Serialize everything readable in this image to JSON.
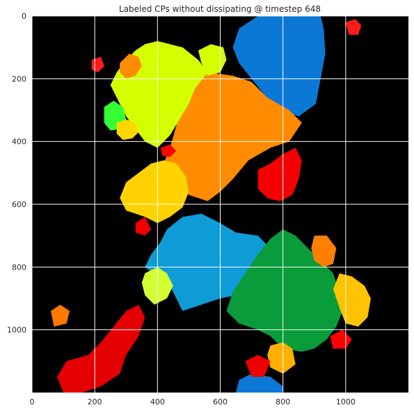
{
  "chart_data": {
    "type": "heatmap",
    "title": "Labeled CPs without dissipating @ timestep 648",
    "xlabel": "",
    "ylabel": "",
    "xlim": [
      0,
      1200
    ],
    "ylim": [
      1200,
      0
    ],
    "x_ticks": [
      0,
      200,
      400,
      600,
      800,
      1000
    ],
    "y_ticks": [
      0,
      200,
      400,
      600,
      800,
      1000
    ],
    "background_color": "#000000",
    "grid": true,
    "grid_color": "#ffffff",
    "regions": [
      {
        "name": "blue-top",
        "color": "#0b78d6",
        "points": [
          [
            660,
            40
          ],
          [
            720,
            0
          ],
          [
            920,
            0
          ],
          [
            930,
            40
          ],
          [
            935,
            120
          ],
          [
            920,
            200
          ],
          [
            905,
            280
          ],
          [
            850,
            320
          ],
          [
            790,
            300
          ],
          [
            740,
            250
          ],
          [
            700,
            200
          ],
          [
            660,
            150
          ],
          [
            640,
            100
          ]
        ]
      },
      {
        "name": "orange-center",
        "color": "#ff8c00",
        "points": [
          [
            500,
            200
          ],
          [
            560,
            180
          ],
          [
            640,
            190
          ],
          [
            700,
            210
          ],
          [
            750,
            260
          ],
          [
            820,
            300
          ],
          [
            860,
            340
          ],
          [
            820,
            400
          ],
          [
            760,
            420
          ],
          [
            690,
            460
          ],
          [
            640,
            520
          ],
          [
            600,
            560
          ],
          [
            560,
            590
          ],
          [
            500,
            570
          ],
          [
            440,
            530
          ],
          [
            420,
            470
          ],
          [
            440,
            420
          ],
          [
            460,
            350
          ],
          [
            470,
            280
          ]
        ]
      },
      {
        "name": "yellow-green-left",
        "color": "#d4ff00",
        "points": [
          [
            330,
            110
          ],
          [
            360,
            90
          ],
          [
            400,
            80
          ],
          [
            440,
            90
          ],
          [
            480,
            100
          ],
          [
            530,
            140
          ],
          [
            560,
            180
          ],
          [
            520,
            230
          ],
          [
            500,
            280
          ],
          [
            470,
            330
          ],
          [
            440,
            380
          ],
          [
            400,
            420
          ],
          [
            360,
            400
          ],
          [
            330,
            360
          ],
          [
            300,
            320
          ],
          [
            270,
            260
          ],
          [
            250,
            220
          ],
          [
            270,
            180
          ],
          [
            300,
            140
          ]
        ]
      },
      {
        "name": "yellow-green-top",
        "color": "#d4ff00",
        "points": [
          [
            530,
            110
          ],
          [
            570,
            90
          ],
          [
            610,
            100
          ],
          [
            620,
            140
          ],
          [
            600,
            180
          ],
          [
            560,
            190
          ],
          [
            540,
            150
          ]
        ]
      },
      {
        "name": "bright-green",
        "color": "#33ff33",
        "points": [
          [
            230,
            290
          ],
          [
            260,
            270
          ],
          [
            290,
            290
          ],
          [
            300,
            330
          ],
          [
            280,
            360
          ],
          [
            250,
            365
          ],
          [
            230,
            340
          ]
        ]
      },
      {
        "name": "yellow-small",
        "color": "#ffd700",
        "points": [
          [
            270,
            340
          ],
          [
            300,
            330
          ],
          [
            330,
            340
          ],
          [
            340,
            370
          ],
          [
            320,
            390
          ],
          [
            290,
            395
          ],
          [
            270,
            375
          ]
        ]
      },
      {
        "name": "orange-upper-left",
        "color": "#ff8c00",
        "points": [
          [
            280,
            150
          ],
          [
            310,
            120
          ],
          [
            340,
            130
          ],
          [
            350,
            160
          ],
          [
            330,
            190
          ],
          [
            300,
            200
          ],
          [
            280,
            180
          ]
        ]
      },
      {
        "name": "yellow-center-left",
        "color": "#ffd200",
        "points": [
          [
            340,
            500
          ],
          [
            380,
            470
          ],
          [
            420,
            460
          ],
          [
            460,
            470
          ],
          [
            490,
            510
          ],
          [
            500,
            560
          ],
          [
            480,
            610
          ],
          [
            440,
            640
          ],
          [
            400,
            660
          ],
          [
            360,
            640
          ],
          [
            300,
            620
          ],
          [
            280,
            580
          ],
          [
            300,
            530
          ]
        ]
      },
      {
        "name": "blue-center",
        "color": "#0e9bd6",
        "points": [
          [
            430,
            680
          ],
          [
            480,
            640
          ],
          [
            540,
            630
          ],
          [
            600,
            660
          ],
          [
            650,
            690
          ],
          [
            720,
            700
          ],
          [
            760,
            740
          ],
          [
            740,
            790
          ],
          [
            720,
            830
          ],
          [
            700,
            870
          ],
          [
            650,
            890
          ],
          [
            600,
            900
          ],
          [
            540,
            920
          ],
          [
            480,
            940
          ],
          [
            460,
            900
          ],
          [
            440,
            860
          ],
          [
            400,
            830
          ],
          [
            360,
            800
          ],
          [
            380,
            760
          ],
          [
            410,
            720
          ]
        ]
      },
      {
        "name": "green-bottom",
        "color": "#0a9c3a",
        "points": [
          [
            720,
            760
          ],
          [
            760,
            710
          ],
          [
            800,
            680
          ],
          [
            840,
            700
          ],
          [
            880,
            740
          ],
          [
            920,
            780
          ],
          [
            960,
            820
          ],
          [
            980,
            880
          ],
          [
            990,
            940
          ],
          [
            970,
            990
          ],
          [
            940,
            1030
          ],
          [
            900,
            1060
          ],
          [
            860,
            1070
          ],
          [
            800,
            1060
          ],
          [
            760,
            1020
          ],
          [
            720,
            1000
          ],
          [
            660,
            980
          ],
          [
            620,
            940
          ],
          [
            640,
            880
          ],
          [
            680,
            820
          ]
        ]
      },
      {
        "name": "red-right-center",
        "color": "#f50000",
        "points": [
          [
            720,
            490
          ],
          [
            760,
            470
          ],
          [
            800,
            440
          ],
          [
            840,
            420
          ],
          [
            860,
            460
          ],
          [
            850,
            520
          ],
          [
            830,
            570
          ],
          [
            790,
            590
          ],
          [
            750,
            580
          ],
          [
            720,
            550
          ]
        ]
      },
      {
        "name": "orange-right",
        "color": "#ff7f00",
        "points": [
          [
            900,
            700
          ],
          [
            940,
            700
          ],
          [
            970,
            740
          ],
          [
            960,
            790
          ],
          [
            930,
            800
          ],
          [
            900,
            780
          ],
          [
            890,
            740
          ]
        ]
      },
      {
        "name": "yellow-right",
        "color": "#ffc300",
        "points": [
          [
            980,
            820
          ],
          [
            1020,
            830
          ],
          [
            1060,
            860
          ],
          [
            1080,
            900
          ],
          [
            1070,
            960
          ],
          [
            1040,
            990
          ],
          [
            1000,
            980
          ],
          [
            980,
            930
          ],
          [
            960,
            870
          ]
        ]
      },
      {
        "name": "yellow-bottom",
        "color": "#ffb000",
        "points": [
          [
            760,
            1050
          ],
          [
            800,
            1040
          ],
          [
            830,
            1060
          ],
          [
            840,
            1110
          ],
          [
            800,
            1140
          ],
          [
            760,
            1120
          ],
          [
            750,
            1080
          ]
        ]
      },
      {
        "name": "blue-bottom",
        "color": "#0b78d6",
        "points": [
          [
            660,
            1160
          ],
          [
            700,
            1140
          ],
          [
            760,
            1150
          ],
          [
            800,
            1180
          ],
          [
            800,
            1200
          ],
          [
            650,
            1200
          ]
        ]
      },
      {
        "name": "lime-bottom-left",
        "color": "#d4ff33",
        "points": [
          [
            360,
            820
          ],
          [
            400,
            800
          ],
          [
            430,
            820
          ],
          [
            450,
            860
          ],
          [
            430,
            900
          ],
          [
            390,
            920
          ],
          [
            360,
            890
          ],
          [
            350,
            850
          ]
        ]
      },
      {
        "name": "red-bottom-left",
        "color": "#e40000",
        "points": [
          [
            300,
            940
          ],
          [
            340,
            920
          ],
          [
            360,
            960
          ],
          [
            340,
            1020
          ],
          [
            300,
            1080
          ],
          [
            280,
            1140
          ],
          [
            220,
            1180
          ],
          [
            160,
            1200
          ],
          [
            100,
            1200
          ],
          [
            80,
            1150
          ],
          [
            110,
            1100
          ],
          [
            180,
            1080
          ],
          [
            220,
            1040
          ],
          [
            260,
            990
          ]
        ]
      },
      {
        "name": "orange-left",
        "color": "#ff7a00",
        "points": [
          [
            60,
            940
          ],
          [
            90,
            920
          ],
          [
            120,
            940
          ],
          [
            110,
            980
          ],
          [
            70,
            990
          ]
        ]
      },
      {
        "name": "red-top-right",
        "color": "#ff1a1a",
        "points": [
          [
            1000,
            20
          ],
          [
            1030,
            10
          ],
          [
            1050,
            30
          ],
          [
            1040,
            60
          ],
          [
            1010,
            60
          ]
        ]
      },
      {
        "name": "red-left-top",
        "color": "#ff1a1a",
        "points": [
          [
            190,
            140
          ],
          [
            220,
            130
          ],
          [
            230,
            160
          ],
          [
            210,
            180
          ],
          [
            190,
            170
          ]
        ]
      },
      {
        "name": "red-center-left",
        "color": "#f00000",
        "points": [
          [
            330,
            660
          ],
          [
            360,
            640
          ],
          [
            380,
            680
          ],
          [
            360,
            700
          ],
          [
            330,
            690
          ]
        ]
      },
      {
        "name": "red-right",
        "color": "#ff0000",
        "points": [
          [
            950,
            1020
          ],
          [
            990,
            1000
          ],
          [
            1020,
            1030
          ],
          [
            1000,
            1060
          ],
          [
            960,
            1060
          ]
        ]
      },
      {
        "name": "red-bottom-mid",
        "color": "#ee0000",
        "points": [
          [
            680,
            1100
          ],
          [
            720,
            1080
          ],
          [
            760,
            1100
          ],
          [
            740,
            1150
          ],
          [
            700,
            1150
          ]
        ]
      },
      {
        "name": "red-center-top",
        "color": "#ff0000",
        "points": [
          [
            410,
            420
          ],
          [
            440,
            410
          ],
          [
            460,
            430
          ],
          [
            440,
            450
          ],
          [
            415,
            445
          ]
        ]
      }
    ]
  }
}
